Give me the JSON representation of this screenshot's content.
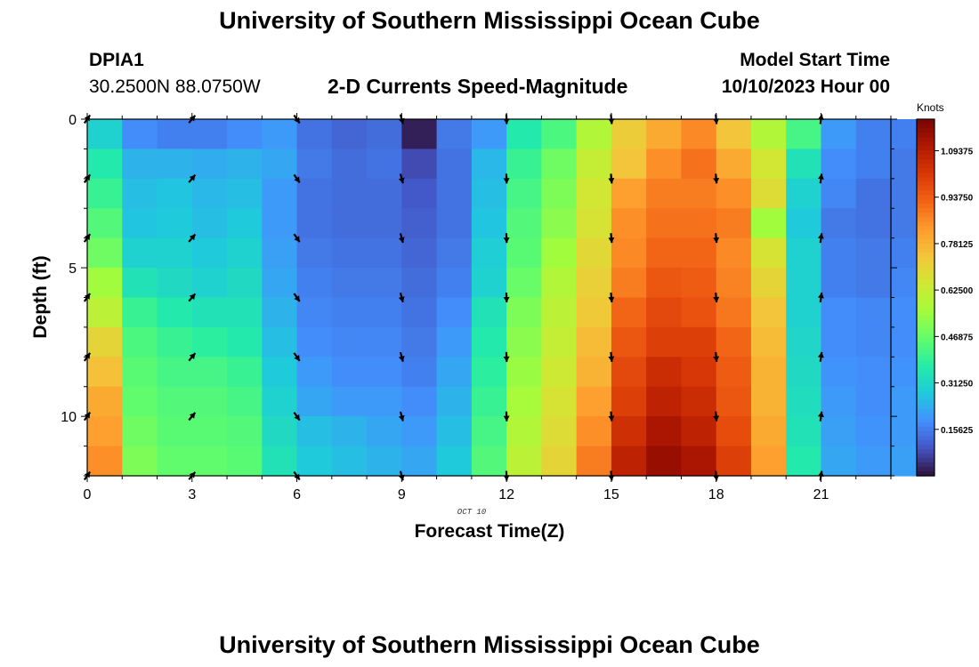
{
  "header": {
    "title": "University of Southern Mississippi Ocean Cube",
    "station_id": "DPIA1",
    "station_coords": "30.2500N  88.0750W",
    "chart_subtitle": "2-D Currents Speed-Magnitude",
    "model_start_label": "Model Start Time",
    "model_start_value": "10/10/2023 Hour 00"
  },
  "footer": {
    "title": "University of Southern Mississippi Ocean Cube"
  },
  "chart_data": {
    "type": "heatmap",
    "title": "2-D Currents Speed-Magnitude",
    "xlabel": "Forecast Time(Z)",
    "ylabel": "Depth (ft)",
    "x_date_label": "OCT  10",
    "xlim": [
      0,
      23
    ],
    "ylim": [
      0,
      12
    ],
    "x_ticks": [
      0,
      3,
      6,
      9,
      12,
      15,
      18,
      21
    ],
    "y_ticks": [
      0,
      5,
      10
    ],
    "colorbar": {
      "label": "Knots",
      "range": [
        0,
        1.2
      ],
      "ticks": [
        "0.15625",
        "0.31250",
        "0.46875",
        "0.62500",
        "0.78125",
        "0.93750",
        "1.09375"
      ],
      "colors": [
        "#30123b",
        "#4454c4",
        "#4390fe",
        "#1fc9dd",
        "#24eca6",
        "#61fc6c",
        "#a4fc3b",
        "#d1e834",
        "#f3c63a",
        "#fe9b2d",
        "#f36315",
        "#d93806",
        "#b11901",
        "#7a0403"
      ]
    },
    "time_hours": [
      0,
      1,
      2,
      3,
      4,
      5,
      6,
      7,
      8,
      9,
      10,
      11,
      12,
      13,
      14,
      15,
      16,
      17,
      18,
      19,
      20,
      21,
      22,
      23
    ],
    "depths_ft": [
      0,
      1,
      2,
      3,
      4,
      5,
      6,
      7,
      8,
      9,
      10,
      11
    ],
    "speed_knots": [
      [
        0.3,
        0.18,
        0.16,
        0.16,
        0.18,
        0.2,
        0.14,
        0.12,
        0.13,
        0.02,
        0.15,
        0.2,
        0.36,
        0.43,
        0.58,
        0.72,
        0.8,
        0.86,
        0.74,
        0.58,
        0.42,
        0.2,
        0.16,
        0.16
      ],
      [
        0.36,
        0.24,
        0.24,
        0.23,
        0.24,
        0.22,
        0.15,
        0.13,
        0.14,
        0.08,
        0.14,
        0.25,
        0.4,
        0.48,
        0.62,
        0.74,
        0.85,
        0.9,
        0.8,
        0.65,
        0.34,
        0.18,
        0.16,
        0.15
      ],
      [
        0.4,
        0.26,
        0.27,
        0.25,
        0.26,
        0.2,
        0.14,
        0.13,
        0.13,
        0.1,
        0.14,
        0.26,
        0.42,
        0.5,
        0.65,
        0.82,
        0.88,
        0.88,
        0.85,
        0.68,
        0.3,
        0.17,
        0.14,
        0.15
      ],
      [
        0.44,
        0.27,
        0.28,
        0.26,
        0.28,
        0.2,
        0.14,
        0.13,
        0.13,
        0.11,
        0.14,
        0.27,
        0.44,
        0.52,
        0.66,
        0.85,
        0.9,
        0.9,
        0.88,
        0.55,
        0.28,
        0.15,
        0.14,
        0.15
      ],
      [
        0.48,
        0.3,
        0.3,
        0.28,
        0.3,
        0.21,
        0.15,
        0.14,
        0.14,
        0.12,
        0.15,
        0.29,
        0.45,
        0.55,
        0.69,
        0.86,
        0.92,
        0.92,
        0.86,
        0.66,
        0.3,
        0.16,
        0.15,
        0.16
      ],
      [
        0.55,
        0.34,
        0.32,
        0.3,
        0.32,
        0.22,
        0.16,
        0.15,
        0.15,
        0.13,
        0.16,
        0.3,
        0.47,
        0.58,
        0.71,
        0.88,
        0.95,
        0.94,
        0.87,
        0.7,
        0.3,
        0.16,
        0.15,
        0.17
      ],
      [
        0.6,
        0.4,
        0.36,
        0.34,
        0.34,
        0.24,
        0.17,
        0.16,
        0.16,
        0.14,
        0.18,
        0.34,
        0.5,
        0.6,
        0.73,
        0.92,
        0.98,
        0.96,
        0.89,
        0.74,
        0.3,
        0.18,
        0.17,
        0.18
      ],
      [
        0.7,
        0.43,
        0.4,
        0.38,
        0.36,
        0.26,
        0.18,
        0.17,
        0.17,
        0.15,
        0.2,
        0.36,
        0.52,
        0.62,
        0.76,
        0.95,
        1.0,
        1.0,
        0.92,
        0.76,
        0.31,
        0.18,
        0.17,
        0.18
      ],
      [
        0.75,
        0.45,
        0.42,
        0.42,
        0.4,
        0.28,
        0.2,
        0.18,
        0.18,
        0.16,
        0.22,
        0.38,
        0.54,
        0.64,
        0.78,
        0.98,
        1.05,
        1.02,
        0.94,
        0.78,
        0.32,
        0.19,
        0.18,
        0.19
      ],
      [
        0.8,
        0.46,
        0.44,
        0.44,
        0.42,
        0.3,
        0.22,
        0.2,
        0.2,
        0.18,
        0.24,
        0.4,
        0.56,
        0.66,
        0.82,
        1.0,
        1.08,
        1.05,
        0.95,
        0.78,
        0.33,
        0.2,
        0.18,
        0.2
      ],
      [
        0.82,
        0.48,
        0.45,
        0.45,
        0.44,
        0.32,
        0.26,
        0.24,
        0.22,
        0.2,
        0.26,
        0.42,
        0.58,
        0.68,
        0.85,
        1.04,
        1.12,
        1.08,
        0.97,
        0.8,
        0.34,
        0.21,
        0.19,
        0.2
      ],
      [
        0.85,
        0.5,
        0.46,
        0.46,
        0.45,
        0.34,
        0.28,
        0.26,
        0.24,
        0.22,
        0.28,
        0.44,
        0.6,
        0.7,
        0.88,
        1.08,
        1.15,
        1.12,
        1.0,
        0.82,
        0.36,
        0.22,
        0.2,
        0.21
      ]
    ],
    "arrows": {
      "times": [
        0,
        3,
        6,
        9,
        12,
        15,
        18,
        21
      ],
      "depths_ft": [
        0,
        2,
        4,
        6,
        8,
        10,
        12
      ],
      "direction_deg": [
        35,
        40,
        145,
        165,
        178,
        175,
        175,
        8
      ]
    }
  }
}
